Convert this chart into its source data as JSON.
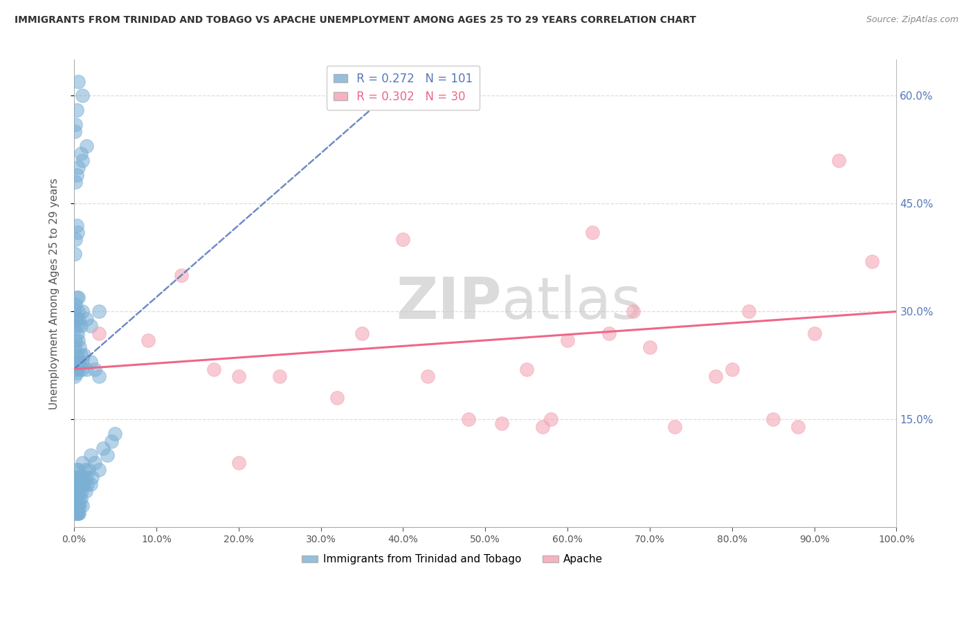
{
  "title": "IMMIGRANTS FROM TRINIDAD AND TOBAGO VS APACHE UNEMPLOYMENT AMONG AGES 25 TO 29 YEARS CORRELATION CHART",
  "source": "Source: ZipAtlas.com",
  "ylabel": "Unemployment Among Ages 25 to 29 years",
  "legend_label_blue": "Immigrants from Trinidad and Tobago",
  "legend_label_pink": "Apache",
  "R_blue": 0.272,
  "N_blue": 101,
  "R_pink": 0.302,
  "N_pink": 30,
  "color_blue": "#7BAFD4",
  "color_pink": "#F4A0B0",
  "trendline_blue_color": "#5577BB",
  "trendline_pink_color": "#EE6688",
  "right_axis_color": "#5577BB",
  "watermark_color": "#CCCCCC",
  "blue_x": [
    0.1,
    0.1,
    0.1,
    0.1,
    0.1,
    0.2,
    0.2,
    0.2,
    0.2,
    0.2,
    0.3,
    0.3,
    0.3,
    0.3,
    0.3,
    0.4,
    0.4,
    0.4,
    0.4,
    0.5,
    0.5,
    0.5,
    0.5,
    0.6,
    0.6,
    0.6,
    0.7,
    0.7,
    0.8,
    0.8,
    0.9,
    1.0,
    1.0,
    1.0,
    1.1,
    1.2,
    1.3,
    1.4,
    1.5,
    1.6,
    1.8,
    2.0,
    2.0,
    2.2,
    2.5,
    3.0,
    3.5,
    4.0,
    4.5,
    5.0,
    0.1,
    0.1,
    0.1,
    0.2,
    0.2,
    0.3,
    0.3,
    0.4,
    0.4,
    0.5,
    0.5,
    0.6,
    0.7,
    0.8,
    0.9,
    1.0,
    1.2,
    1.5,
    2.0,
    2.5,
    3.0,
    0.1,
    0.1,
    0.2,
    0.2,
    0.3,
    0.3,
    0.4,
    0.5,
    0.5,
    0.6,
    0.8,
    1.0,
    1.5,
    2.0,
    3.0,
    0.1,
    0.2,
    0.3,
    0.4,
    0.5,
    0.8,
    1.0,
    1.5,
    0.2,
    0.3,
    0.1,
    0.2,
    0.3,
    1.0,
    0.5
  ],
  "blue_y": [
    2.0,
    3.0,
    4.0,
    5.0,
    6.0,
    2.0,
    3.0,
    4.0,
    5.0,
    7.0,
    2.0,
    3.0,
    4.0,
    6.0,
    8.0,
    2.0,
    3.0,
    5.0,
    7.0,
    2.0,
    3.0,
    5.0,
    8.0,
    2.0,
    4.0,
    6.0,
    3.0,
    5.0,
    4.0,
    7.0,
    5.0,
    3.0,
    6.0,
    9.0,
    7.0,
    6.0,
    8.0,
    5.0,
    7.0,
    6.0,
    8.0,
    6.0,
    10.0,
    7.0,
    9.0,
    8.0,
    11.0,
    10.0,
    12.0,
    13.0,
    21.0,
    23.0,
    25.0,
    22.0,
    26.0,
    21.5,
    24.0,
    23.0,
    27.0,
    22.0,
    26.0,
    23.0,
    25.0,
    24.0,
    22.0,
    23.0,
    24.0,
    22.0,
    23.0,
    22.0,
    21.0,
    28.0,
    30.0,
    29.0,
    31.0,
    29.0,
    32.0,
    28.0,
    30.0,
    32.0,
    29.0,
    28.0,
    30.0,
    29.0,
    28.0,
    30.0,
    38.0,
    40.0,
    42.0,
    41.0,
    50.0,
    52.0,
    51.0,
    53.0,
    48.0,
    49.0,
    55.0,
    56.0,
    58.0,
    60.0,
    62.0
  ],
  "pink_x": [
    3.0,
    9.0,
    13.0,
    17.0,
    20.0,
    20.0,
    25.0,
    32.0,
    35.0,
    40.0,
    43.0,
    48.0,
    52.0,
    55.0,
    57.0,
    58.0,
    60.0,
    63.0,
    65.0,
    68.0,
    70.0,
    73.0,
    78.0,
    80.0,
    82.0,
    85.0,
    88.0,
    90.0,
    93.0,
    97.0
  ],
  "pink_y": [
    27.0,
    26.0,
    35.0,
    22.0,
    9.0,
    21.0,
    21.0,
    18.0,
    27.0,
    40.0,
    21.0,
    15.0,
    14.5,
    22.0,
    14.0,
    15.0,
    26.0,
    41.0,
    27.0,
    30.0,
    25.0,
    14.0,
    21.0,
    22.0,
    30.0,
    15.0,
    14.0,
    27.0,
    51.0,
    37.0
  ],
  "xlim": [
    0,
    100
  ],
  "ylim": [
    0,
    65
  ],
  "xticks": [
    0,
    10,
    20,
    30,
    40,
    50,
    60,
    70,
    80,
    90,
    100
  ],
  "yticks_right": [
    15,
    30,
    45,
    60
  ],
  "xticklabels": [
    "0.0%",
    "10.0%",
    "20.0%",
    "30.0%",
    "40.0%",
    "50.0%",
    "60.0%",
    "70.0%",
    "80.0%",
    "90.0%",
    "100.0%"
  ],
  "yticklabels_right": [
    "15.0%",
    "30.0%",
    "45.0%",
    "60.0%"
  ],
  "background_color": "#FFFFFF",
  "grid_color": "#DDDDDD",
  "grid_yticks": [
    15,
    30,
    45,
    60
  ],
  "blue_trend_start_x": 0,
  "blue_trend_start_y": 22.0,
  "blue_trend_end_x": 40,
  "blue_trend_end_y": 62.0,
  "pink_trend_start_x": 0,
  "pink_trend_start_y": 22.0,
  "pink_trend_end_x": 100,
  "pink_trend_end_y": 30.0
}
